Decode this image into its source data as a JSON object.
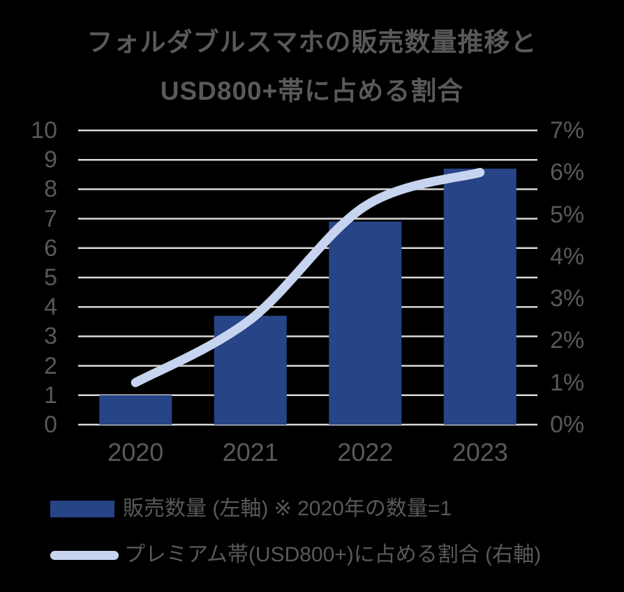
{
  "title": {
    "line1": "フォルダブルスマホの販売数量推移と",
    "line2": "USD800+帯に占める割合"
  },
  "chart_data": {
    "type": "combo-bar-line",
    "title": "フォルダブルスマホの販売数量推移と USD800+帯に占める割合",
    "categories": [
      "2020",
      "2021",
      "2022",
      "2023"
    ],
    "series": [
      {
        "name": "販売数量 (左軸) ※ 2020年の数量=1",
        "type": "bar",
        "axis": "left",
        "values": [
          1.0,
          3.7,
          6.9,
          8.7
        ]
      },
      {
        "name": "プレミアム帯(USD800+)に占める割合 (右軸)",
        "type": "line",
        "axis": "right",
        "values": [
          1.0,
          2.5,
          5.2,
          6.0
        ]
      }
    ],
    "left_axis": {
      "min": 0,
      "max": 10,
      "tick_labels": [
        "0",
        "1",
        "2",
        "3",
        "4",
        "5",
        "6",
        "7",
        "8",
        "9",
        "10"
      ]
    },
    "right_axis": {
      "min": 0,
      "max": 7,
      "tick_labels": [
        "0%",
        "1%",
        "2%",
        "3%",
        "4%",
        "5%",
        "6%",
        "7%"
      ]
    },
    "grid": true,
    "line_smooth": true,
    "legend_position": "bottom-left"
  },
  "legend": [
    {
      "swatch": "bar",
      "label": "販売数量 (左軸) ※ 2020年の数量=1"
    },
    {
      "swatch": "line",
      "label": "プレミアム帯(USD800+)に占める割合 (右軸)"
    }
  ],
  "colors": {
    "background": "#000000",
    "bar": "#274486",
    "line": "#C7D4EF",
    "text": "#595959",
    "gridline": "#D9D9D9"
  }
}
